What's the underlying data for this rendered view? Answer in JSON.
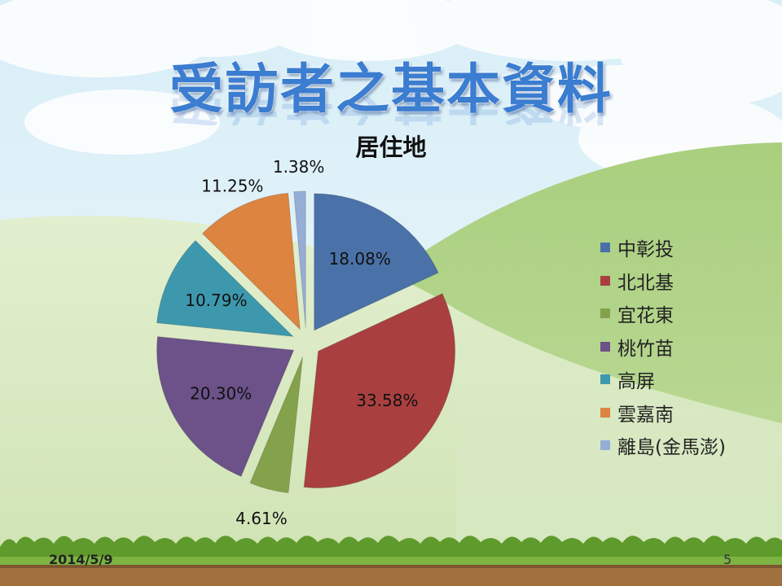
{
  "slide": {
    "title": "受訪者之基本資料",
    "date": "2014/5/9",
    "page_number": "5"
  },
  "chart_data": {
    "type": "pie",
    "title": "居住地",
    "exploded": true,
    "legend_position": "right",
    "slices": [
      {
        "label": "中彰投",
        "value": 18.08,
        "display": "18.08%",
        "color": "#4a72a8"
      },
      {
        "label": "北北基",
        "value": 33.58,
        "display": "33.58%",
        "color": "#a9403f"
      },
      {
        "label": "宜花東",
        "value": 4.61,
        "display": "4.61%",
        "color": "#84a24c"
      },
      {
        "label": "桃竹苗",
        "value": 20.3,
        "display": "20.30%",
        "color": "#6c5289"
      },
      {
        "label": "高屏",
        "value": 10.79,
        "display": "10.79%",
        "color": "#3d98ad"
      },
      {
        "label": "雲嘉南",
        "value": 11.25,
        "display": "11.25%",
        "color": "#dc8440"
      },
      {
        "label": "離島(金馬澎)",
        "value": 1.38,
        "display": "1.38%",
        "color": "#95aed6"
      }
    ]
  }
}
